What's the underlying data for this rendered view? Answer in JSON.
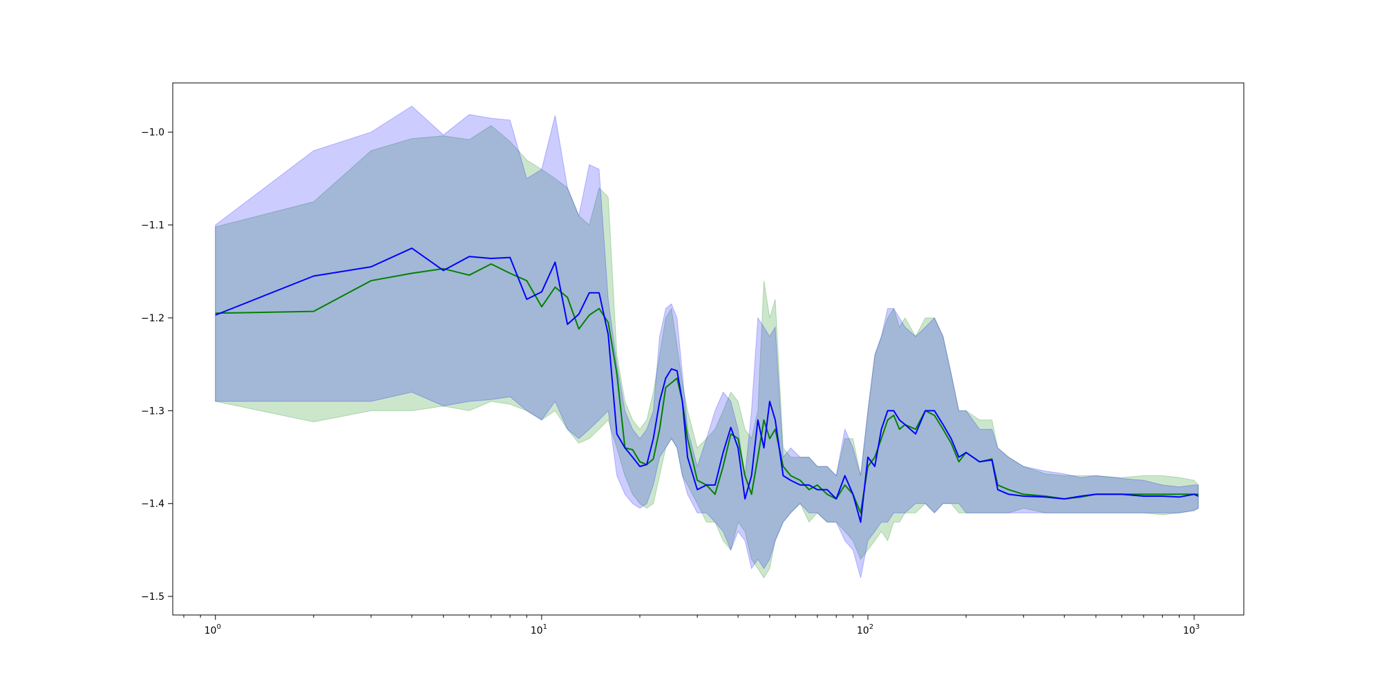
{
  "chart_data": {
    "type": "line",
    "x_scale": "log",
    "xlim": [
      0.74,
      1420
    ],
    "ylim": [
      -1.52,
      -0.947
    ],
    "x_ticks": [
      {
        "value": 1,
        "base": "10",
        "exp": "0"
      },
      {
        "value": 10,
        "base": "10",
        "exp": "1"
      },
      {
        "value": 100,
        "base": "10",
        "exp": "2"
      },
      {
        "value": 1000,
        "base": "10",
        "exp": "3"
      }
    ],
    "y_ticks": [
      {
        "value": -1.0,
        "label": "−1.0"
      },
      {
        "value": -1.1,
        "label": "−1.1"
      },
      {
        "value": -1.2,
        "label": "−1.2"
      },
      {
        "value": -1.3,
        "label": "−1.3"
      },
      {
        "value": -1.4,
        "label": "−1.4"
      },
      {
        "value": -1.5,
        "label": "−1.5"
      }
    ],
    "grid": false,
    "legend": "none",
    "colors": {
      "green": "#008000",
      "blue": "#0000ff",
      "green_fill": "#008000",
      "blue_fill": "#0000ff"
    },
    "series": [
      {
        "color": "green",
        "x": [
          1,
          2,
          3,
          4,
          5,
          6,
          7,
          8,
          9,
          10,
          11,
          12,
          13,
          14,
          15,
          16,
          17,
          18,
          19,
          20,
          21,
          22,
          23,
          24,
          25,
          26,
          27,
          28,
          30,
          32,
          34,
          36,
          38,
          40,
          42,
          44,
          46,
          48,
          50,
          52,
          55,
          58,
          62,
          66,
          70,
          75,
          80,
          85,
          90,
          95,
          100,
          105,
          110,
          115,
          120,
          125,
          130,
          140,
          150,
          160,
          170,
          180,
          190,
          200,
          220,
          240,
          250,
          270,
          300,
          350,
          400,
          450,
          500,
          600,
          700,
          800,
          900,
          1000,
          1030
        ],
        "y": [
          -1.195,
          -1.193,
          -1.16,
          -1.152,
          -1.147,
          -1.154,
          -1.142,
          -1.152,
          -1.16,
          -1.188,
          -1.167,
          -1.178,
          -1.212,
          -1.197,
          -1.19,
          -1.205,
          -1.26,
          -1.34,
          -1.342,
          -1.355,
          -1.358,
          -1.352,
          -1.32,
          -1.275,
          -1.27,
          -1.265,
          -1.29,
          -1.33,
          -1.375,
          -1.38,
          -1.39,
          -1.36,
          -1.325,
          -1.33,
          -1.37,
          -1.39,
          -1.35,
          -1.31,
          -1.33,
          -1.32,
          -1.36,
          -1.37,
          -1.375,
          -1.385,
          -1.38,
          -1.39,
          -1.395,
          -1.38,
          -1.39,
          -1.41,
          -1.36,
          -1.35,
          -1.33,
          -1.31,
          -1.305,
          -1.32,
          -1.315,
          -1.32,
          -1.3,
          -1.305,
          -1.32,
          -1.335,
          -1.355,
          -1.345,
          -1.355,
          -1.352,
          -1.38,
          -1.385,
          -1.39,
          -1.392,
          -1.395,
          -1.393,
          -1.39,
          -1.39,
          -1.39,
          -1.39,
          -1.39,
          -1.39,
          -1.39
        ],
        "band_upper": [
          -1.102,
          -1.075,
          -1.02,
          -1.007,
          -1.004,
          -1.008,
          -0.993,
          -1.01,
          -1.03,
          -1.04,
          -1.05,
          -1.06,
          -1.09,
          -1.1,
          -1.06,
          -1.07,
          -1.24,
          -1.29,
          -1.31,
          -1.32,
          -1.31,
          -1.28,
          -1.24,
          -1.2,
          -1.19,
          -1.23,
          -1.27,
          -1.3,
          -1.34,
          -1.33,
          -1.32,
          -1.3,
          -1.28,
          -1.29,
          -1.32,
          -1.33,
          -1.3,
          -1.16,
          -1.2,
          -1.18,
          -1.34,
          -1.35,
          -1.35,
          -1.35,
          -1.36,
          -1.36,
          -1.37,
          -1.33,
          -1.33,
          -1.37,
          -1.3,
          -1.24,
          -1.22,
          -1.2,
          -1.19,
          -1.21,
          -1.2,
          -1.22,
          -1.2,
          -1.2,
          -1.22,
          -1.26,
          -1.3,
          -1.3,
          -1.31,
          -1.31,
          -1.34,
          -1.35,
          -1.36,
          -1.368,
          -1.37,
          -1.37,
          -1.37,
          -1.372,
          -1.37,
          -1.37,
          -1.372,
          -1.375,
          -1.38
        ],
        "band_lower": [
          -1.29,
          -1.312,
          -1.3,
          -1.3,
          -1.295,
          -1.3,
          -1.29,
          -1.293,
          -1.3,
          -1.31,
          -1.3,
          -1.32,
          -1.335,
          -1.33,
          -1.32,
          -1.31,
          -1.34,
          -1.37,
          -1.39,
          -1.4,
          -1.405,
          -1.4,
          -1.37,
          -1.34,
          -1.33,
          -1.34,
          -1.37,
          -1.38,
          -1.4,
          -1.42,
          -1.42,
          -1.44,
          -1.45,
          -1.42,
          -1.43,
          -1.46,
          -1.47,
          -1.48,
          -1.47,
          -1.44,
          -1.42,
          -1.41,
          -1.4,
          -1.42,
          -1.41,
          -1.42,
          -1.42,
          -1.43,
          -1.44,
          -1.46,
          -1.45,
          -1.44,
          -1.43,
          -1.44,
          -1.42,
          -1.42,
          -1.41,
          -1.41,
          -1.4,
          -1.41,
          -1.4,
          -1.4,
          -1.41,
          -1.41,
          -1.41,
          -1.41,
          -1.41,
          -1.41,
          -1.405,
          -1.41,
          -1.41,
          -1.41,
          -1.41,
          -1.41,
          -1.41,
          -1.412,
          -1.41,
          -1.408,
          -1.405
        ]
      },
      {
        "color": "blue",
        "x": [
          1,
          2,
          3,
          4,
          5,
          6,
          7,
          8,
          9,
          10,
          11,
          12,
          13,
          14,
          15,
          16,
          17,
          18,
          19,
          20,
          21,
          22,
          23,
          24,
          25,
          26,
          27,
          28,
          30,
          32,
          34,
          36,
          38,
          40,
          42,
          44,
          46,
          48,
          50,
          52,
          55,
          58,
          62,
          66,
          70,
          75,
          80,
          85,
          90,
          95,
          100,
          105,
          110,
          115,
          120,
          125,
          130,
          140,
          150,
          160,
          170,
          180,
          190,
          200,
          220,
          240,
          250,
          270,
          300,
          350,
          400,
          450,
          500,
          600,
          700,
          800,
          900,
          1000,
          1030
        ],
        "y": [
          -1.197,
          -1.155,
          -1.145,
          -1.125,
          -1.149,
          -1.134,
          -1.136,
          -1.135,
          -1.18,
          -1.172,
          -1.14,
          -1.207,
          -1.196,
          -1.173,
          -1.173,
          -1.218,
          -1.325,
          -1.34,
          -1.35,
          -1.36,
          -1.358,
          -1.33,
          -1.29,
          -1.265,
          -1.255,
          -1.257,
          -1.29,
          -1.35,
          -1.385,
          -1.38,
          -1.38,
          -1.345,
          -1.318,
          -1.34,
          -1.395,
          -1.37,
          -1.31,
          -1.34,
          -1.29,
          -1.31,
          -1.37,
          -1.375,
          -1.38,
          -1.38,
          -1.385,
          -1.385,
          -1.395,
          -1.37,
          -1.39,
          -1.42,
          -1.35,
          -1.36,
          -1.32,
          -1.3,
          -1.3,
          -1.31,
          -1.315,
          -1.325,
          -1.3,
          -1.3,
          -1.315,
          -1.33,
          -1.35,
          -1.345,
          -1.355,
          -1.353,
          -1.385,
          -1.39,
          -1.392,
          -1.393,
          -1.395,
          -1.392,
          -1.39,
          -1.39,
          -1.392,
          -1.392,
          -1.393,
          -1.39,
          -1.392
        ],
        "band_upper": [
          -1.1,
          -1.02,
          -1.0,
          -0.972,
          -1.003,
          -0.981,
          -0.985,
          -0.987,
          -1.05,
          -1.04,
          -0.982,
          -1.06,
          -1.09,
          -1.035,
          -1.04,
          -1.18,
          -1.25,
          -1.3,
          -1.32,
          -1.33,
          -1.32,
          -1.3,
          -1.22,
          -1.19,
          -1.185,
          -1.2,
          -1.26,
          -1.32,
          -1.36,
          -1.33,
          -1.3,
          -1.28,
          -1.29,
          -1.32,
          -1.37,
          -1.3,
          -1.2,
          -1.21,
          -1.22,
          -1.21,
          -1.35,
          -1.34,
          -1.35,
          -1.35,
          -1.36,
          -1.36,
          -1.37,
          -1.32,
          -1.34,
          -1.37,
          -1.3,
          -1.24,
          -1.22,
          -1.19,
          -1.19,
          -1.2,
          -1.21,
          -1.22,
          -1.21,
          -1.2,
          -1.22,
          -1.26,
          -1.3,
          -1.3,
          -1.32,
          -1.32,
          -1.34,
          -1.35,
          -1.36,
          -1.365,
          -1.368,
          -1.372,
          -1.37,
          -1.373,
          -1.375,
          -1.38,
          -1.382,
          -1.38,
          -1.38
        ],
        "band_lower": [
          -1.29,
          -1.29,
          -1.29,
          -1.28,
          -1.295,
          -1.29,
          -1.288,
          -1.285,
          -1.3,
          -1.31,
          -1.29,
          -1.32,
          -1.33,
          -1.32,
          -1.31,
          -1.3,
          -1.37,
          -1.39,
          -1.4,
          -1.405,
          -1.4,
          -1.38,
          -1.35,
          -1.34,
          -1.33,
          -1.34,
          -1.37,
          -1.39,
          -1.41,
          -1.41,
          -1.42,
          -1.43,
          -1.45,
          -1.43,
          -1.44,
          -1.47,
          -1.46,
          -1.47,
          -1.46,
          -1.44,
          -1.42,
          -1.41,
          -1.4,
          -1.41,
          -1.41,
          -1.42,
          -1.42,
          -1.44,
          -1.45,
          -1.48,
          -1.44,
          -1.43,
          -1.42,
          -1.42,
          -1.41,
          -1.41,
          -1.41,
          -1.4,
          -1.4,
          -1.41,
          -1.4,
          -1.4,
          -1.4,
          -1.41,
          -1.41,
          -1.41,
          -1.41,
          -1.41,
          -1.41,
          -1.41,
          -1.41,
          -1.41,
          -1.41,
          -1.41,
          -1.41,
          -1.41,
          -1.41,
          -1.407,
          -1.405
        ]
      }
    ]
  }
}
